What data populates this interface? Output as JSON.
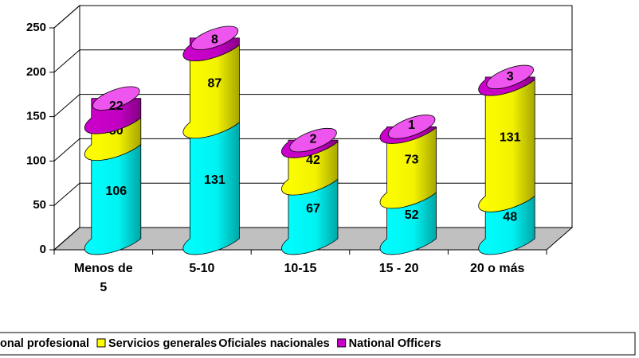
{
  "chart_data": {
    "type": "bar",
    "categories": [
      "Menos de 5",
      "5-10",
      "10-15",
      "15 - 20",
      "20 o más"
    ],
    "series": [
      {
        "name": "onal profesional",
        "color": "#00ffff",
        "values": [
          106,
          131,
          67,
          52,
          48
        ]
      },
      {
        "name": "Servicios generales",
        "color": "#ffff00",
        "values": [
          30,
          87,
          42,
          73,
          131
        ]
      },
      {
        "name": "Oficiales nacionales",
        "values": [
          null,
          null,
          null,
          null,
          null
        ]
      },
      {
        "name": "National Officers",
        "color": "#cc00cc",
        "values": [
          22,
          8,
          2,
          1,
          3
        ]
      }
    ],
    "ylim": [
      0,
      250
    ],
    "yticks": [
      0,
      50,
      100,
      150,
      200,
      250
    ],
    "grid": true,
    "stacked": true,
    "legend": "bottom"
  }
}
